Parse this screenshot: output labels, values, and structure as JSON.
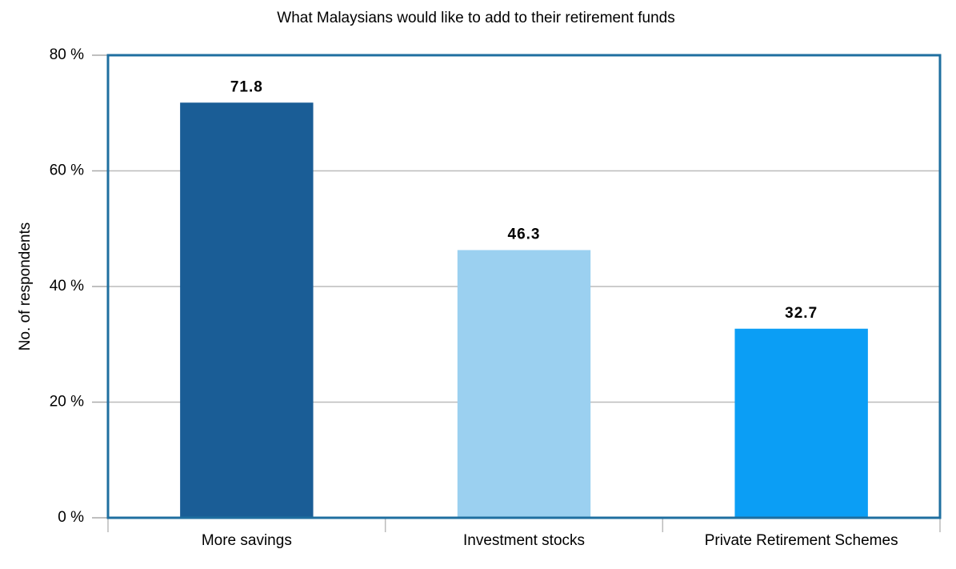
{
  "chart_data": {
    "type": "bar",
    "title": "What Malaysians would like to add to their retirement funds",
    "y_label": "No. of respondents",
    "categories": [
      "More savings",
      "Investment stocks",
      "Private Retirement Schemes"
    ],
    "values": [
      71.8,
      46.3,
      32.7
    ],
    "colors": [
      "#1a5d96",
      "#9bd0f0",
      "#0b9ef5"
    ],
    "ylim": [
      0,
      80
    ],
    "yticks": [
      {
        "value": 0,
        "label": "0 %"
      },
      {
        "value": 20,
        "label": "20 %"
      },
      {
        "value": 40,
        "label": "40 %"
      },
      {
        "value": 60,
        "label": "60 %"
      },
      {
        "value": 80,
        "label": "80 %"
      }
    ],
    "grid": true
  }
}
